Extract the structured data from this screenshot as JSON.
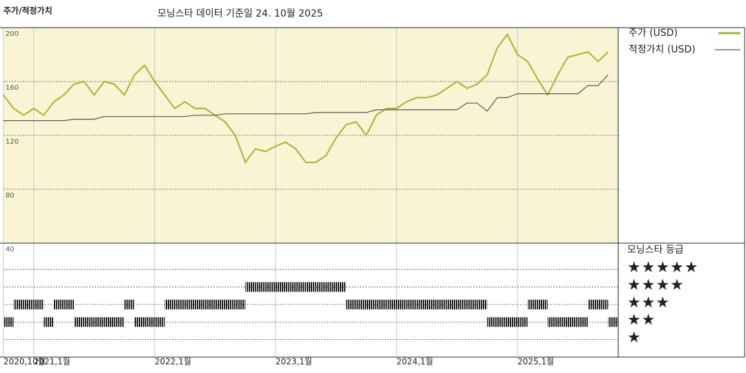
{
  "chart_data": [
    {
      "type": "line",
      "title": "주가/적정가치",
      "subtitle": "모닝스타 데이터 기준일 24. 10월 2025",
      "x": [
        "2020-10",
        "2020-11",
        "2020-12",
        "2021-01",
        "2021-02",
        "2021-03",
        "2021-04",
        "2021-05",
        "2021-06",
        "2021-07",
        "2021-08",
        "2021-09",
        "2021-10",
        "2021-11",
        "2021-12",
        "2022-01",
        "2022-02",
        "2022-03",
        "2022-04",
        "2022-05",
        "2022-06",
        "2022-07",
        "2022-08",
        "2022-09",
        "2022-10",
        "2022-11",
        "2022-12",
        "2023-01",
        "2023-02",
        "2023-03",
        "2023-04",
        "2023-05",
        "2023-06",
        "2023-07",
        "2023-08",
        "2023-09",
        "2023-10",
        "2023-11",
        "2023-12",
        "2024-01",
        "2024-02",
        "2024-03",
        "2024-04",
        "2024-05",
        "2024-06",
        "2024-07",
        "2024-08",
        "2024-09",
        "2024-10",
        "2024-11",
        "2024-12",
        "2025-01",
        "2025-02",
        "2025-03",
        "2025-04",
        "2025-05",
        "2025-06",
        "2025-07",
        "2025-08",
        "2025-09",
        "2025-10"
      ],
      "series": [
        {
          "name": "주가 (USD)",
          "color": "#a9b22c",
          "values": [
            150,
            140,
            135,
            140,
            135,
            145,
            150,
            158,
            160,
            150,
            160,
            158,
            150,
            165,
            172,
            160,
            150,
            140,
            145,
            140,
            140,
            135,
            130,
            120,
            100,
            110,
            108,
            112,
            115,
            110,
            100,
            100,
            105,
            118,
            128,
            130,
            120,
            135,
            140,
            140,
            145,
            148,
            148,
            150,
            155,
            160,
            155,
            158,
            165,
            185,
            195,
            180,
            175,
            162,
            150,
            165,
            178,
            180,
            182,
            175,
            182
          ]
        },
        {
          "name": "적정가치 (USD)",
          "color": "#555555",
          "values": [
            131,
            131,
            131,
            131,
            131,
            131,
            131,
            132,
            132,
            132,
            134,
            134,
            134,
            134,
            134,
            134,
            134,
            134,
            134,
            135,
            135,
            135,
            136,
            136,
            136,
            136,
            136,
            136,
            136,
            136,
            136,
            137,
            137,
            137,
            137,
            137,
            137,
            139,
            139,
            139,
            139,
            139,
            139,
            139,
            139,
            139,
            144,
            144,
            138,
            148,
            148,
            151,
            151,
            151,
            151,
            151,
            151,
            151,
            157,
            157,
            165
          ]
        }
      ],
      "xlim": [
        "2020-10",
        "2025-11"
      ],
      "xticks": [
        {
          "value": "2020-10",
          "label": "2020,10월"
        },
        {
          "value": "2021-01",
          "label": "2021,1월"
        },
        {
          "value": "2022-01",
          "label": "2022,1월"
        },
        {
          "value": "2023-01",
          "label": "2023,1월"
        },
        {
          "value": "2024-01",
          "label": "2024,1월"
        },
        {
          "value": "2025-01",
          "label": "2025,1월"
        }
      ],
      "ylim": [
        40,
        200
      ],
      "yticks": [
        40,
        80,
        120,
        160,
        200
      ],
      "grid": true
    },
    {
      "type": "rating",
      "title": "모닝스타 등급",
      "color": "#222222",
      "x": [
        "2020-10",
        "2020-11",
        "2020-12",
        "2021-01",
        "2021-02",
        "2021-03",
        "2021-04",
        "2021-05",
        "2021-06",
        "2021-07",
        "2021-08",
        "2021-09",
        "2021-10",
        "2021-11",
        "2021-12",
        "2022-01",
        "2022-02",
        "2022-03",
        "2022-04",
        "2022-05",
        "2022-06",
        "2022-07",
        "2022-08",
        "2022-09",
        "2022-10",
        "2022-11",
        "2022-12",
        "2023-01",
        "2023-02",
        "2023-03",
        "2023-04",
        "2023-05",
        "2023-06",
        "2023-07",
        "2023-08",
        "2023-09",
        "2023-10",
        "2023-11",
        "2023-12",
        "2024-01",
        "2024-02",
        "2024-03",
        "2024-04",
        "2024-05",
        "2024-06",
        "2024-07",
        "2024-08",
        "2024-09",
        "2024-10",
        "2024-11",
        "2024-12",
        "2025-01",
        "2025-02",
        "2025-03",
        "2025-04",
        "2025-05",
        "2025-06",
        "2025-07",
        "2025-08",
        "2025-09",
        "2025-10"
      ],
      "values": [
        2,
        3,
        3,
        3,
        2,
        3,
        3,
        2,
        2,
        2,
        2,
        2,
        3,
        2,
        2,
        2,
        3,
        3,
        3,
        3,
        3,
        3,
        3,
        3,
        4,
        4,
        4,
        4,
        4,
        4,
        4,
        4,
        4,
        4,
        3,
        3,
        3,
        3,
        3,
        3,
        3,
        3,
        3,
        3,
        3,
        3,
        3,
        3,
        2,
        2,
        2,
        2,
        3,
        3,
        2,
        2,
        2,
        2,
        3,
        3,
        2
      ],
      "ylim": [
        0,
        6.5
      ],
      "yticks": [
        {
          "value": 1,
          "label": "★"
        },
        {
          "value": 2,
          "label": "★★"
        },
        {
          "value": 3,
          "label": "★★★"
        },
        {
          "value": 4,
          "label": "★★★★"
        },
        {
          "value": 5,
          "label": "★★★★★"
        }
      ]
    }
  ]
}
